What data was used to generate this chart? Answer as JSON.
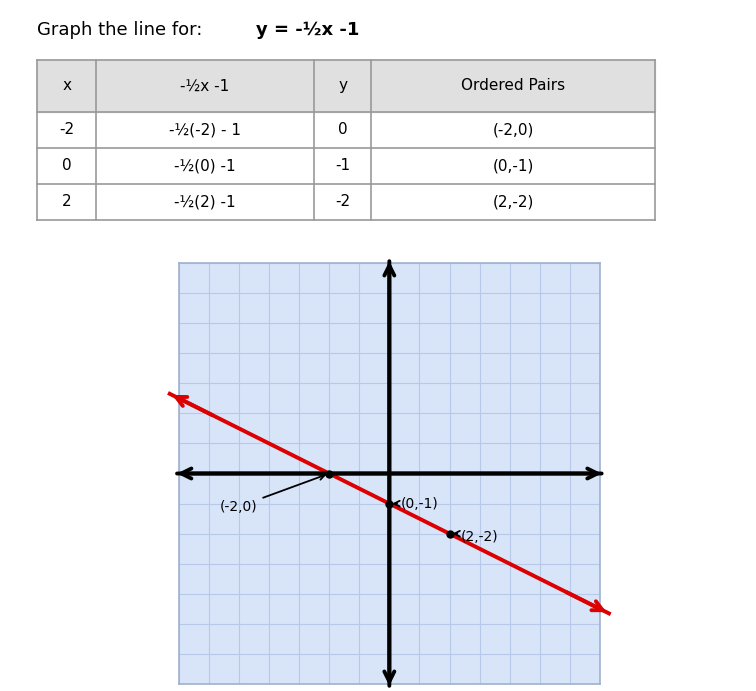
{
  "title_plain": "Graph the line for:   ",
  "title_bold": "y = -½x -1",
  "table_headers": [
    "x",
    "-½x -1",
    "y",
    "Ordered Pairs"
  ],
  "table_rows": [
    [
      "-2",
      "-½(-2) - 1",
      "0",
      "(-2,0)"
    ],
    [
      "0",
      "-½(0) -1",
      "-1",
      "(0,-1)"
    ],
    [
      "2",
      "-½(2) -1",
      "-2",
      "(2,-2)"
    ]
  ],
  "grid_color": "#b8c8e8",
  "grid_bg": "#d8e4f8",
  "grid_border": "#a0b0d0",
  "axis_min": -7,
  "axis_max": 7,
  "line_color": "#dd0000",
  "points": [
    [
      -2,
      0
    ],
    [
      0,
      -1
    ],
    [
      2,
      -2
    ]
  ],
  "point_labels": [
    "(-2,0)",
    "(0,-1)",
    "(2,-2)"
  ],
  "header_bg": "#e0e0e0",
  "table_border": "#999999",
  "bg_color": "#ffffff"
}
